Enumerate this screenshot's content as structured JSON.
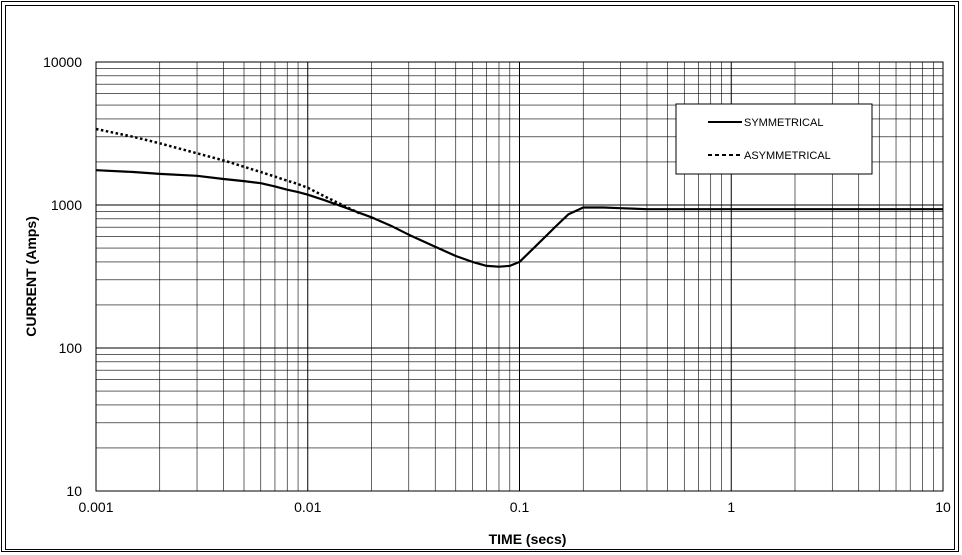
{
  "chart_data": {
    "type": "line",
    "title": "",
    "xlabel": "TIME (secs)",
    "ylabel": "CURRENT (Amps)",
    "x_scale": "log",
    "y_scale": "log",
    "xlim": [
      0.001,
      10
    ],
    "ylim": [
      10,
      10000
    ],
    "x_ticks": [
      "0.001",
      "0.01",
      "0.1",
      "1",
      "10"
    ],
    "y_ticks": [
      "10",
      "100",
      "1000",
      "10000"
    ],
    "grid": true,
    "legend_position": "top-right",
    "series": [
      {
        "name": "SYMMETRICAL",
        "style": "solid",
        "color": "#000000",
        "x": [
          0.001,
          0.0015,
          0.002,
          0.003,
          0.004,
          0.005,
          0.006,
          0.007,
          0.008,
          0.009,
          0.01,
          0.012,
          0.015,
          0.02,
          0.025,
          0.03,
          0.04,
          0.05,
          0.06,
          0.07,
          0.08,
          0.09,
          0.1,
          0.12,
          0.15,
          0.17,
          0.2,
          0.25,
          0.3,
          0.4,
          0.5,
          1,
          2,
          5,
          10
        ],
        "y": [
          1750,
          1700,
          1650,
          1600,
          1520,
          1470,
          1420,
          1350,
          1280,
          1230,
          1180,
          1080,
          960,
          820,
          710,
          620,
          510,
          440,
          400,
          375,
          370,
          375,
          400,
          520,
          720,
          860,
          960,
          960,
          950,
          935,
          935,
          935,
          935,
          935,
          935
        ]
      },
      {
        "name": "ASYMMETRICAL",
        "style": "dashed",
        "color": "#000000",
        "x": [
          0.001,
          0.0015,
          0.002,
          0.003,
          0.004,
          0.005,
          0.006,
          0.007,
          0.008,
          0.009,
          0.01,
          0.012,
          0.015,
          0.018
        ],
        "y": [
          3400,
          3000,
          2700,
          2300,
          2050,
          1850,
          1700,
          1580,
          1480,
          1400,
          1320,
          1150,
          980,
          860
        ]
      }
    ]
  }
}
